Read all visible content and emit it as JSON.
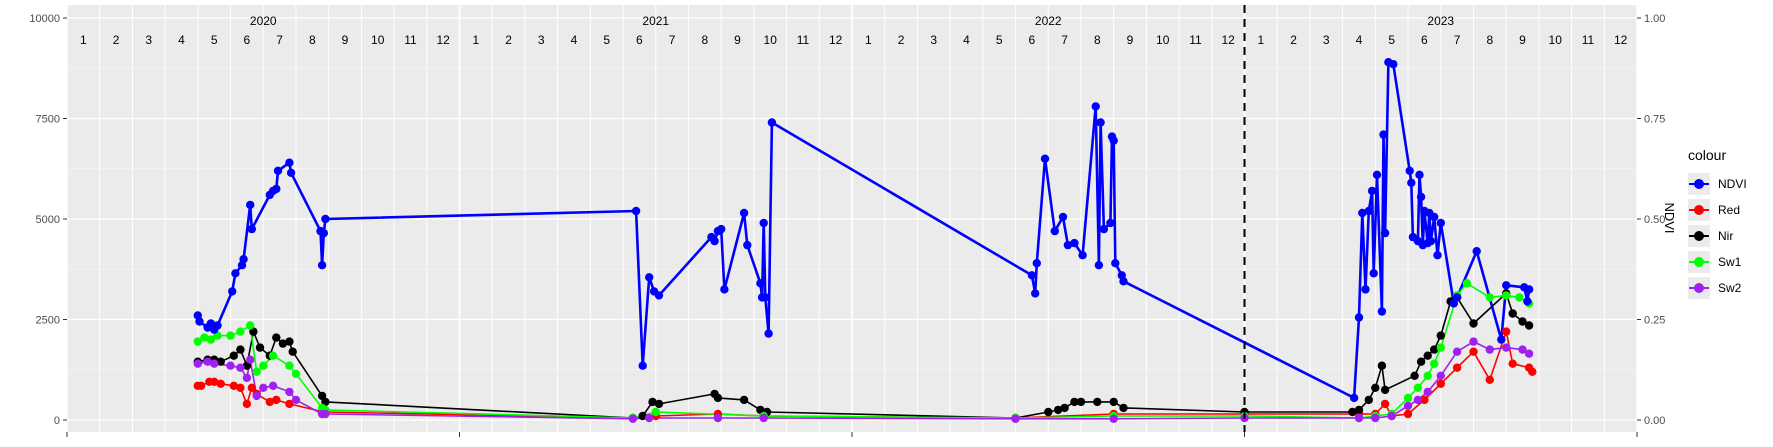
{
  "chart_data": {
    "type": "line",
    "ylim_left": [
      0,
      10000
    ],
    "ylim_right": [
      0,
      1.0
    ],
    "y_ticks_left": [
      "0",
      "2500",
      "5000",
      "7500",
      "10000"
    ],
    "y_ticks_right": [
      "0.00",
      "0.25",
      "0.50",
      "0.75",
      "1.00"
    ],
    "ylabel_right": "NDVI",
    "grid": true,
    "legend_position": "right",
    "legend_title": "colour",
    "year_labels": [
      "2020",
      "2021",
      "2022",
      "2023"
    ],
    "month_labels": [
      "1",
      "2",
      "3",
      "4",
      "5",
      "6",
      "7",
      "8",
      "9",
      "10",
      "11",
      "12"
    ],
    "x_unit": "months since 2020-01 (0 = start of January 2020)",
    "x_range": [
      0,
      48
    ],
    "vline_x": 36,
    "series": [
      {
        "name": "NDVI",
        "color": "#0000FF",
        "points": [
          [
            4.0,
            2600
          ],
          [
            4.05,
            2450
          ],
          [
            4.3,
            2300
          ],
          [
            4.4,
            2400
          ],
          [
            4.5,
            2250
          ],
          [
            4.6,
            2350
          ],
          [
            5.05,
            3200
          ],
          [
            5.15,
            3650
          ],
          [
            5.35,
            3850
          ],
          [
            5.4,
            4000
          ],
          [
            5.6,
            5350
          ],
          [
            5.65,
            4750
          ],
          [
            6.2,
            5600
          ],
          [
            6.3,
            5700
          ],
          [
            6.4,
            5750
          ],
          [
            6.45,
            6200
          ],
          [
            6.8,
            6400
          ],
          [
            6.85,
            6150
          ],
          [
            7.75,
            4700
          ],
          [
            7.8,
            3850
          ],
          [
            7.85,
            4650
          ],
          [
            7.9,
            5000
          ],
          [
            17.4,
            5200
          ],
          [
            17.6,
            1350
          ],
          [
            17.8,
            3550
          ],
          [
            17.95,
            3200
          ],
          [
            18.1,
            3100
          ],
          [
            19.7,
            4550
          ],
          [
            19.8,
            4450
          ],
          [
            19.9,
            4700
          ],
          [
            20.0,
            4750
          ],
          [
            20.1,
            3250
          ],
          [
            20.7,
            5150
          ],
          [
            20.8,
            4350
          ],
          [
            21.2,
            3400
          ],
          [
            21.25,
            3050
          ],
          [
            21.3,
            4900
          ],
          [
            21.35,
            3050
          ],
          [
            21.45,
            2150
          ],
          [
            21.55,
            7400
          ],
          [
            29.5,
            3600
          ],
          [
            29.6,
            3150
          ],
          [
            29.65,
            3900
          ],
          [
            29.9,
            6500
          ],
          [
            30.2,
            4700
          ],
          [
            30.45,
            5050
          ],
          [
            30.6,
            4350
          ],
          [
            30.8,
            4400
          ],
          [
            31.05,
            4100
          ],
          [
            31.45,
            7800
          ],
          [
            31.55,
            3850
          ],
          [
            31.6,
            7400
          ],
          [
            31.7,
            4750
          ],
          [
            31.9,
            4900
          ],
          [
            31.95,
            7050
          ],
          [
            32.0,
            6950
          ],
          [
            32.05,
            3900
          ],
          [
            32.25,
            3600
          ],
          [
            32.3,
            3450
          ],
          [
            39.35,
            550
          ],
          [
            39.5,
            2550
          ],
          [
            39.6,
            5150
          ],
          [
            39.7,
            3250
          ],
          [
            39.8,
            5200
          ],
          [
            39.9,
            5700
          ],
          [
            39.95,
            3650
          ],
          [
            40.05,
            6100
          ],
          [
            40.2,
            2700
          ],
          [
            40.25,
            7100
          ],
          [
            40.3,
            4650
          ],
          [
            40.4,
            8900
          ],
          [
            40.55,
            8850
          ],
          [
            41.05,
            6200
          ],
          [
            41.1,
            5900
          ],
          [
            41.15,
            4550
          ],
          [
            41.3,
            4450
          ],
          [
            41.35,
            6100
          ],
          [
            41.4,
            5550
          ],
          [
            41.45,
            4350
          ],
          [
            41.5,
            5200
          ],
          [
            41.6,
            4400
          ],
          [
            41.65,
            5150
          ],
          [
            41.7,
            4450
          ],
          [
            41.8,
            5050
          ],
          [
            41.9,
            4100
          ],
          [
            42.0,
            4900
          ],
          [
            42.4,
            2900
          ],
          [
            42.5,
            3050
          ],
          [
            43.1,
            4200
          ],
          [
            43.85,
            2000
          ],
          [
            44.0,
            3350
          ],
          [
            44.55,
            3300
          ],
          [
            44.65,
            2950
          ],
          [
            44.7,
            3250
          ]
        ]
      },
      {
        "name": "Red",
        "color": "#FF0000",
        "points": [
          [
            4.0,
            850
          ],
          [
            4.1,
            850
          ],
          [
            4.35,
            950
          ],
          [
            4.5,
            950
          ],
          [
            4.7,
            900
          ],
          [
            5.1,
            850
          ],
          [
            5.3,
            800
          ],
          [
            5.5,
            400
          ],
          [
            5.65,
            800
          ],
          [
            5.8,
            650
          ],
          [
            6.2,
            450
          ],
          [
            6.4,
            500
          ],
          [
            6.8,
            400
          ],
          [
            7.85,
            200
          ],
          [
            17.3,
            50
          ],
          [
            18.0,
            100
          ],
          [
            19.9,
            150
          ],
          [
            21.3,
            100
          ],
          [
            29.0,
            50
          ],
          [
            32.0,
            150
          ],
          [
            36.0,
            150
          ],
          [
            39.5,
            150
          ],
          [
            40.0,
            150
          ],
          [
            40.3,
            400
          ],
          [
            40.5,
            100
          ],
          [
            41.0,
            150
          ],
          [
            41.5,
            500
          ],
          [
            42.0,
            900
          ],
          [
            42.5,
            1300
          ],
          [
            43.0,
            1700
          ],
          [
            43.5,
            1000
          ],
          [
            44.0,
            2200
          ],
          [
            44.2,
            1400
          ],
          [
            44.7,
            1300
          ],
          [
            44.8,
            1200
          ]
        ]
      },
      {
        "name": "Nir",
        "color": "#000000",
        "points": [
          [
            4.0,
            1450
          ],
          [
            4.3,
            1500
          ],
          [
            4.5,
            1500
          ],
          [
            4.7,
            1450
          ],
          [
            5.1,
            1600
          ],
          [
            5.3,
            1750
          ],
          [
            5.5,
            1350
          ],
          [
            5.7,
            2200
          ],
          [
            5.9,
            1800
          ],
          [
            6.2,
            1600
          ],
          [
            6.4,
            2050
          ],
          [
            6.6,
            1900
          ],
          [
            6.8,
            1950
          ],
          [
            6.9,
            1700
          ],
          [
            7.8,
            600
          ],
          [
            7.9,
            450
          ],
          [
            17.3,
            50
          ],
          [
            17.6,
            100
          ],
          [
            17.9,
            450
          ],
          [
            18.1,
            400
          ],
          [
            19.8,
            650
          ],
          [
            19.9,
            550
          ],
          [
            20.7,
            500
          ],
          [
            21.2,
            250
          ],
          [
            21.4,
            200
          ],
          [
            29.0,
            50
          ],
          [
            30.0,
            200
          ],
          [
            30.3,
            250
          ],
          [
            30.5,
            300
          ],
          [
            30.8,
            450
          ],
          [
            31.0,
            450
          ],
          [
            31.5,
            450
          ],
          [
            32.0,
            450
          ],
          [
            32.3,
            300
          ],
          [
            36.0,
            200
          ],
          [
            39.3,
            200
          ],
          [
            39.5,
            250
          ],
          [
            39.8,
            500
          ],
          [
            40.0,
            800
          ],
          [
            40.2,
            1350
          ],
          [
            40.3,
            750
          ],
          [
            41.2,
            1100
          ],
          [
            41.4,
            1450
          ],
          [
            41.6,
            1600
          ],
          [
            41.8,
            1750
          ],
          [
            42.0,
            2100
          ],
          [
            42.3,
            2950
          ],
          [
            42.5,
            3050
          ],
          [
            43.0,
            2400
          ],
          [
            44.0,
            3150
          ],
          [
            44.2,
            2650
          ],
          [
            44.5,
            2450
          ],
          [
            44.7,
            2350
          ]
        ]
      },
      {
        "name": "Sw1",
        "color": "#00FF00",
        "points": [
          [
            4.0,
            1950
          ],
          [
            4.2,
            2050
          ],
          [
            4.4,
            2000
          ],
          [
            4.6,
            2100
          ],
          [
            5.0,
            2100
          ],
          [
            5.3,
            2200
          ],
          [
            5.6,
            2350
          ],
          [
            5.8,
            1200
          ],
          [
            6.0,
            1350
          ],
          [
            6.3,
            1600
          ],
          [
            6.8,
            1350
          ],
          [
            7.0,
            1150
          ],
          [
            7.8,
            300
          ],
          [
            7.9,
            250
          ],
          [
            17.3,
            50
          ],
          [
            18.0,
            200
          ],
          [
            21.3,
            100
          ],
          [
            29.0,
            50
          ],
          [
            32.0,
            100
          ],
          [
            36.0,
            100
          ],
          [
            39.5,
            50
          ],
          [
            40.0,
            100
          ],
          [
            40.5,
            150
          ],
          [
            41.0,
            550
          ],
          [
            41.3,
            800
          ],
          [
            41.6,
            1100
          ],
          [
            41.8,
            1400
          ],
          [
            42.0,
            1800
          ],
          [
            42.5,
            3100
          ],
          [
            42.8,
            3400
          ],
          [
            43.5,
            3050
          ],
          [
            44.0,
            3100
          ],
          [
            44.4,
            3050
          ],
          [
            44.7,
            2900
          ]
        ]
      },
      {
        "name": "Sw2",
        "color": "#A020F0",
        "points": [
          [
            4.0,
            1400
          ],
          [
            4.3,
            1450
          ],
          [
            4.5,
            1400
          ],
          [
            5.0,
            1350
          ],
          [
            5.3,
            1300
          ],
          [
            5.5,
            1050
          ],
          [
            5.6,
            1500
          ],
          [
            5.8,
            600
          ],
          [
            6.0,
            800
          ],
          [
            6.3,
            850
          ],
          [
            6.8,
            700
          ],
          [
            7.0,
            500
          ],
          [
            7.8,
            150
          ],
          [
            7.9,
            150
          ],
          [
            17.3,
            30
          ],
          [
            17.8,
            50
          ],
          [
            19.9,
            50
          ],
          [
            21.3,
            50
          ],
          [
            29.0,
            30
          ],
          [
            32.0,
            30
          ],
          [
            36.0,
            50
          ],
          [
            39.5,
            50
          ],
          [
            40.0,
            50
          ],
          [
            40.5,
            100
          ],
          [
            41.0,
            350
          ],
          [
            41.3,
            500
          ],
          [
            41.6,
            700
          ],
          [
            42.0,
            1100
          ],
          [
            42.5,
            1700
          ],
          [
            43.0,
            1950
          ],
          [
            43.5,
            1750
          ],
          [
            44.0,
            1800
          ],
          [
            44.5,
            1750
          ],
          [
            44.7,
            1650
          ]
        ]
      }
    ]
  }
}
